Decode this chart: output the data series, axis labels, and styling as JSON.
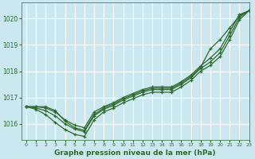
{
  "background_color": "#cbe8f0",
  "grid_color": "#ffffff",
  "line_color": "#2d6a2d",
  "xlabel": "Graphe pression niveau de la mer (hPa)",
  "ylim": [
    1015.4,
    1020.6
  ],
  "xlim": [
    -0.5,
    23
  ],
  "yticks": [
    1016,
    1017,
    1018,
    1019,
    1020
  ],
  "xticks": [
    0,
    1,
    2,
    3,
    4,
    5,
    6,
    7,
    8,
    9,
    10,
    11,
    12,
    13,
    14,
    15,
    16,
    17,
    18,
    19,
    20,
    21,
    22,
    23
  ],
  "series": [
    [
      1016.65,
      1016.65,
      1016.65,
      1016.5,
      1016.1,
      1015.85,
      1015.75,
      1016.35,
      1016.6,
      1016.75,
      1016.95,
      1017.1,
      1017.25,
      1017.35,
      1017.35,
      1017.35,
      1017.55,
      1017.8,
      1018.15,
      1018.85,
      1019.2,
      1019.65,
      1020.1,
      1020.3
    ],
    [
      1016.65,
      1016.65,
      1016.6,
      1016.45,
      1016.15,
      1015.95,
      1015.85,
      1016.45,
      1016.65,
      1016.8,
      1017.0,
      1017.15,
      1017.3,
      1017.4,
      1017.4,
      1017.4,
      1017.6,
      1017.85,
      1018.2,
      1018.5,
      1018.85,
      1019.5,
      1020.15,
      1020.3
    ],
    [
      1016.65,
      1016.6,
      1016.5,
      1016.3,
      1016.0,
      1015.8,
      1015.7,
      1016.3,
      1016.55,
      1016.7,
      1016.9,
      1017.05,
      1017.2,
      1017.3,
      1017.3,
      1017.3,
      1017.5,
      1017.75,
      1018.1,
      1018.35,
      1018.7,
      1019.35,
      1020.05,
      1020.3
    ],
    [
      1016.65,
      1016.55,
      1016.35,
      1016.05,
      1015.78,
      1015.6,
      1015.52,
      1016.15,
      1016.45,
      1016.6,
      1016.8,
      1016.95,
      1017.1,
      1017.2,
      1017.2,
      1017.2,
      1017.4,
      1017.65,
      1018.0,
      1018.22,
      1018.55,
      1019.2,
      1019.95,
      1020.3
    ]
  ],
  "marker": "+",
  "markersize": 3.5,
  "linewidth": 0.9
}
